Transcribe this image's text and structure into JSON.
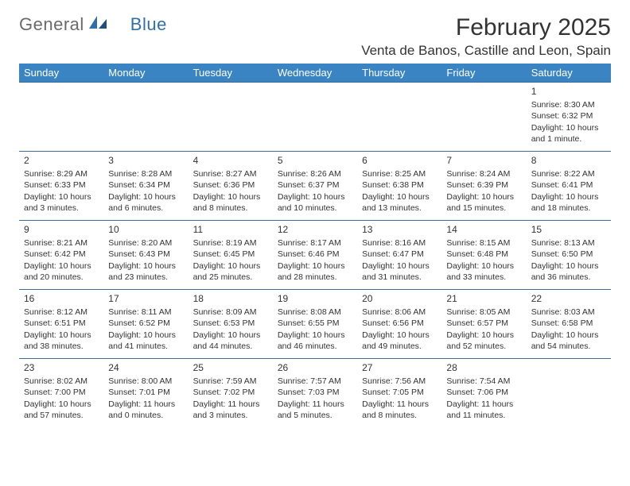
{
  "branding": {
    "logo_text_1": "General",
    "logo_text_2": "Blue",
    "logo_color_gray": "#6a6a6a",
    "logo_color_blue": "#2f6fa8"
  },
  "title": {
    "month": "February 2025",
    "location": "Venta de Banos, Castille and Leon, Spain",
    "title_fontsize": 30,
    "location_fontsize": 17
  },
  "style": {
    "header_bg": "#3b84c4",
    "header_text": "#ffffff",
    "row_border": "#3b6a94",
    "body_text": "#333333",
    "background": "#ffffff",
    "cell_fontsize": 10.5,
    "daynum_fontsize": 12
  },
  "columns": [
    "Sunday",
    "Monday",
    "Tuesday",
    "Wednesday",
    "Thursday",
    "Friday",
    "Saturday"
  ],
  "weeks": [
    [
      null,
      null,
      null,
      null,
      null,
      null,
      {
        "n": "1",
        "sr": "Sunrise: 8:30 AM",
        "ss": "Sunset: 6:32 PM",
        "dl": "Daylight: 10 hours and 1 minute."
      }
    ],
    [
      {
        "n": "2",
        "sr": "Sunrise: 8:29 AM",
        "ss": "Sunset: 6:33 PM",
        "dl": "Daylight: 10 hours and 3 minutes."
      },
      {
        "n": "3",
        "sr": "Sunrise: 8:28 AM",
        "ss": "Sunset: 6:34 PM",
        "dl": "Daylight: 10 hours and 6 minutes."
      },
      {
        "n": "4",
        "sr": "Sunrise: 8:27 AM",
        "ss": "Sunset: 6:36 PM",
        "dl": "Daylight: 10 hours and 8 minutes."
      },
      {
        "n": "5",
        "sr": "Sunrise: 8:26 AM",
        "ss": "Sunset: 6:37 PM",
        "dl": "Daylight: 10 hours and 10 minutes."
      },
      {
        "n": "6",
        "sr": "Sunrise: 8:25 AM",
        "ss": "Sunset: 6:38 PM",
        "dl": "Daylight: 10 hours and 13 minutes."
      },
      {
        "n": "7",
        "sr": "Sunrise: 8:24 AM",
        "ss": "Sunset: 6:39 PM",
        "dl": "Daylight: 10 hours and 15 minutes."
      },
      {
        "n": "8",
        "sr": "Sunrise: 8:22 AM",
        "ss": "Sunset: 6:41 PM",
        "dl": "Daylight: 10 hours and 18 minutes."
      }
    ],
    [
      {
        "n": "9",
        "sr": "Sunrise: 8:21 AM",
        "ss": "Sunset: 6:42 PM",
        "dl": "Daylight: 10 hours and 20 minutes."
      },
      {
        "n": "10",
        "sr": "Sunrise: 8:20 AM",
        "ss": "Sunset: 6:43 PM",
        "dl": "Daylight: 10 hours and 23 minutes."
      },
      {
        "n": "11",
        "sr": "Sunrise: 8:19 AM",
        "ss": "Sunset: 6:45 PM",
        "dl": "Daylight: 10 hours and 25 minutes."
      },
      {
        "n": "12",
        "sr": "Sunrise: 8:17 AM",
        "ss": "Sunset: 6:46 PM",
        "dl": "Daylight: 10 hours and 28 minutes."
      },
      {
        "n": "13",
        "sr": "Sunrise: 8:16 AM",
        "ss": "Sunset: 6:47 PM",
        "dl": "Daylight: 10 hours and 31 minutes."
      },
      {
        "n": "14",
        "sr": "Sunrise: 8:15 AM",
        "ss": "Sunset: 6:48 PM",
        "dl": "Daylight: 10 hours and 33 minutes."
      },
      {
        "n": "15",
        "sr": "Sunrise: 8:13 AM",
        "ss": "Sunset: 6:50 PM",
        "dl": "Daylight: 10 hours and 36 minutes."
      }
    ],
    [
      {
        "n": "16",
        "sr": "Sunrise: 8:12 AM",
        "ss": "Sunset: 6:51 PM",
        "dl": "Daylight: 10 hours and 38 minutes."
      },
      {
        "n": "17",
        "sr": "Sunrise: 8:11 AM",
        "ss": "Sunset: 6:52 PM",
        "dl": "Daylight: 10 hours and 41 minutes."
      },
      {
        "n": "18",
        "sr": "Sunrise: 8:09 AM",
        "ss": "Sunset: 6:53 PM",
        "dl": "Daylight: 10 hours and 44 minutes."
      },
      {
        "n": "19",
        "sr": "Sunrise: 8:08 AM",
        "ss": "Sunset: 6:55 PM",
        "dl": "Daylight: 10 hours and 46 minutes."
      },
      {
        "n": "20",
        "sr": "Sunrise: 8:06 AM",
        "ss": "Sunset: 6:56 PM",
        "dl": "Daylight: 10 hours and 49 minutes."
      },
      {
        "n": "21",
        "sr": "Sunrise: 8:05 AM",
        "ss": "Sunset: 6:57 PM",
        "dl": "Daylight: 10 hours and 52 minutes."
      },
      {
        "n": "22",
        "sr": "Sunrise: 8:03 AM",
        "ss": "Sunset: 6:58 PM",
        "dl": "Daylight: 10 hours and 54 minutes."
      }
    ],
    [
      {
        "n": "23",
        "sr": "Sunrise: 8:02 AM",
        "ss": "Sunset: 7:00 PM",
        "dl": "Daylight: 10 hours and 57 minutes."
      },
      {
        "n": "24",
        "sr": "Sunrise: 8:00 AM",
        "ss": "Sunset: 7:01 PM",
        "dl": "Daylight: 11 hours and 0 minutes."
      },
      {
        "n": "25",
        "sr": "Sunrise: 7:59 AM",
        "ss": "Sunset: 7:02 PM",
        "dl": "Daylight: 11 hours and 3 minutes."
      },
      {
        "n": "26",
        "sr": "Sunrise: 7:57 AM",
        "ss": "Sunset: 7:03 PM",
        "dl": "Daylight: 11 hours and 5 minutes."
      },
      {
        "n": "27",
        "sr": "Sunrise: 7:56 AM",
        "ss": "Sunset: 7:05 PM",
        "dl": "Daylight: 11 hours and 8 minutes."
      },
      {
        "n": "28",
        "sr": "Sunrise: 7:54 AM",
        "ss": "Sunset: 7:06 PM",
        "dl": "Daylight: 11 hours and 11 minutes."
      },
      null
    ]
  ]
}
